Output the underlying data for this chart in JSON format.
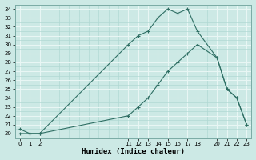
{
  "line1_x": [
    0,
    1,
    2,
    11,
    12,
    13,
    14,
    15,
    16,
    17,
    18,
    20,
    21,
    22,
    23
  ],
  "line1_y": [
    20,
    20,
    20,
    30,
    31,
    31.5,
    33,
    34,
    33.5,
    34,
    31.5,
    28.5,
    25,
    24,
    21
  ],
  "line2_x": [
    0,
    1,
    2,
    11,
    12,
    13,
    14,
    15,
    16,
    17,
    18,
    20,
    21,
    22,
    23
  ],
  "line2_y": [
    20.5,
    20,
    20,
    22,
    23,
    24,
    25.5,
    27,
    28,
    29,
    30,
    28.5,
    25,
    24,
    21
  ],
  "color": "#2e6e63",
  "bg_color": "#cce9e5",
  "grid_color": "#b0d8d3",
  "grid_white": "#e8f6f4",
  "xlabel": "Humidex (Indice chaleur)",
  "ylim": [
    19.5,
    34.5
  ],
  "xlim": [
    -0.5,
    23.5
  ],
  "ytick_labels": [
    "20",
    "21",
    "22",
    "23",
    "24",
    "25",
    "26",
    "27",
    "28",
    "29",
    "30",
    "31",
    "32",
    "33",
    "34"
  ],
  "ytick_vals": [
    20,
    21,
    22,
    23,
    24,
    25,
    26,
    27,
    28,
    29,
    30,
    31,
    32,
    33,
    34
  ],
  "xtick_vals": [
    0,
    1,
    2,
    11,
    12,
    13,
    14,
    15,
    16,
    17,
    18,
    20,
    21,
    22,
    23
  ],
  "marker": "+",
  "markersize": 3,
  "linewidth": 0.8
}
